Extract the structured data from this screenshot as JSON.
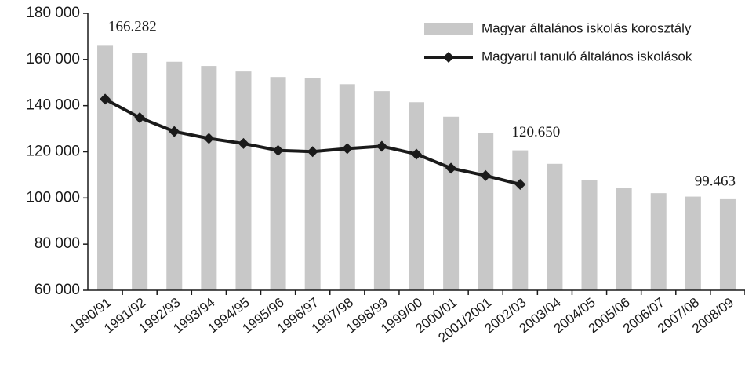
{
  "chart_data": {
    "type": "bar_line",
    "categories": [
      "1990/91",
      "1991/92",
      "1992/93",
      "1993/94",
      "1994/95",
      "1995/96",
      "1996/97",
      "1997/98",
      "1998/99",
      "1999/00",
      "2000/01",
      "2001/2001",
      "2002/03",
      "2003/04",
      "2004/05",
      "2005/06",
      "2006/07",
      "2007/08",
      "2008/09"
    ],
    "series": [
      {
        "name": "Magyar általános iskolás korosztály",
        "type": "bar",
        "color": "#c8c8c8",
        "values": [
          166282,
          163000,
          159000,
          157200,
          154800,
          152400,
          151900,
          149300,
          146300,
          141500,
          135200,
          128000,
          120650,
          114800,
          107600,
          104500,
          102100,
          100600,
          99463
        ],
        "value_labels": [
          "166.282",
          null,
          null,
          null,
          null,
          null,
          null,
          null,
          null,
          null,
          null,
          null,
          "120.650",
          null,
          null,
          null,
          null,
          null,
          "99.463"
        ]
      },
      {
        "name": "Magyarul tanuló általános iskolások",
        "type": "line",
        "color": "#1a1a1a",
        "values": [
          142800,
          134800,
          128800,
          125800,
          123600,
          120600,
          120100,
          121400,
          122400,
          119000,
          112900,
          109700,
          105900,
          null,
          null,
          null,
          null,
          null,
          null
        ]
      }
    ],
    "ylim": [
      60000,
      180000
    ],
    "yticks": [
      {
        "value": 60000,
        "label": "60 000"
      },
      {
        "value": 80000,
        "label": "80 000"
      },
      {
        "value": 100000,
        "label": "100 000"
      },
      {
        "value": 120000,
        "label": "120 000"
      },
      {
        "value": 140000,
        "label": "140 000"
      },
      {
        "value": 160000,
        "label": "160 000"
      },
      {
        "value": 180000,
        "label": "180 000"
      }
    ],
    "legend": "upper right"
  }
}
